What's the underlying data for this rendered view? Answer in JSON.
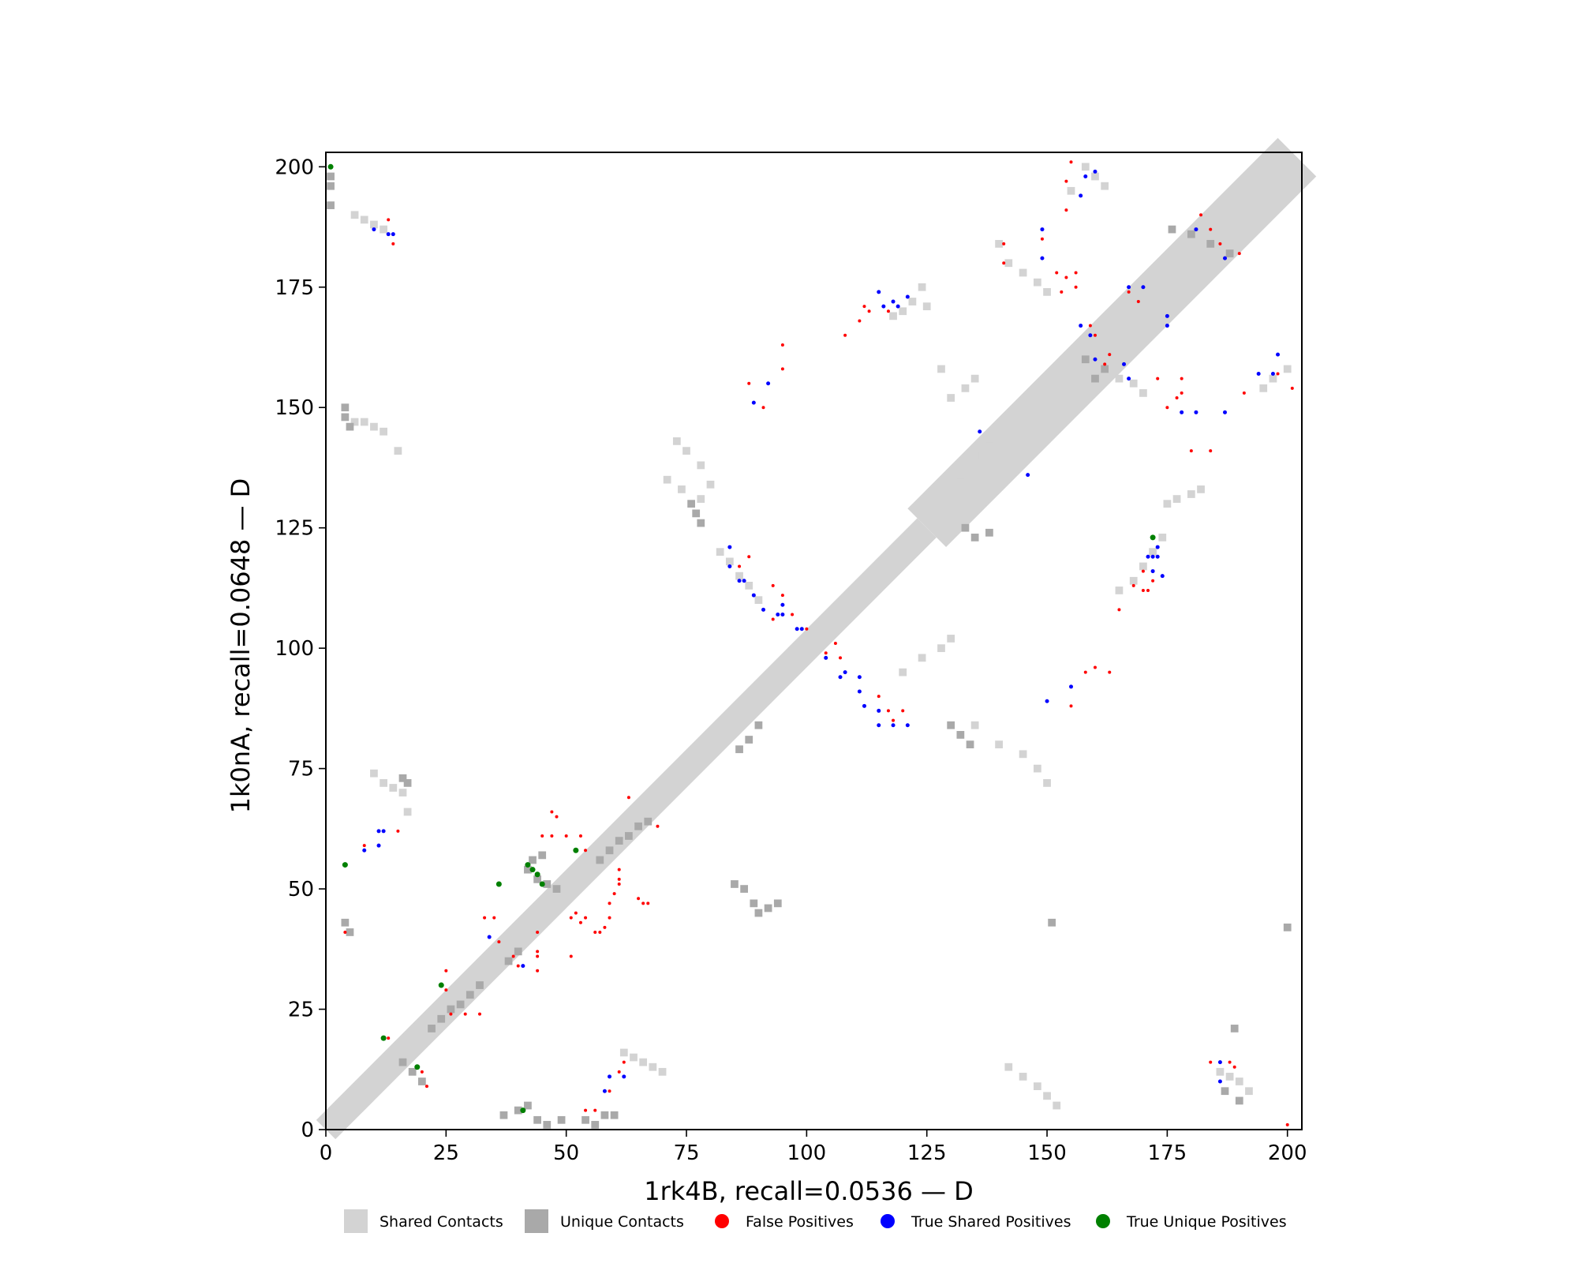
{
  "chart_data": {
    "type": "scatter",
    "subtype": "protein contact map overlay",
    "xlabel": "1rk4B, recall=0.0536 — D",
    "ylabel": "1k0nA, recall=0.0648 — D",
    "xlim": [
      0,
      203
    ],
    "ylim": [
      0,
      203
    ],
    "xticks": [
      0,
      25,
      50,
      75,
      100,
      125,
      150,
      175,
      200
    ],
    "yticks": [
      0,
      25,
      50,
      75,
      100,
      125,
      150,
      175,
      200
    ],
    "grid": false,
    "legend_position": "bottom-center",
    "colors": {
      "shared": "#d3d3d3",
      "unique": "#a9a9a9",
      "false_positive": "#ff0000",
      "true_shared": "#0000ff",
      "true_unique": "#008000"
    },
    "legend": [
      {
        "label": "Shared Contacts",
        "marker": "square",
        "color": "#d3d3d3"
      },
      {
        "label": "Unique Contacts",
        "marker": "square",
        "color": "#a9a9a9"
      },
      {
        "label": "False Positives",
        "marker": "circle",
        "color": "#ff0000"
      },
      {
        "label": "True Shared Positives",
        "marker": "circle",
        "color": "#0000ff"
      },
      {
        "label": "True Unique Positives",
        "marker": "circle",
        "color": "#008000"
      }
    ],
    "diagonal_band": {
      "description": "shared contacts near the main diagonal",
      "segments": [
        [
          0,
          0,
          125,
          2
        ],
        [
          125,
          125,
          202,
          4
        ]
      ]
    },
    "shared_contacts": [
      [
        6,
        190
      ],
      [
        8,
        189
      ],
      [
        10,
        188
      ],
      [
        12,
        187
      ],
      [
        6,
        147
      ],
      [
        8,
        147
      ],
      [
        10,
        146
      ],
      [
        12,
        145
      ],
      [
        15,
        141
      ],
      [
        10,
        74
      ],
      [
        12,
        72
      ],
      [
        14,
        71
      ],
      [
        16,
        70
      ],
      [
        17,
        66
      ],
      [
        73,
        143
      ],
      [
        75,
        141
      ],
      [
        78,
        138
      ],
      [
        80,
        134
      ],
      [
        71,
        135
      ],
      [
        74,
        133
      ],
      [
        78,
        131
      ],
      [
        82,
        120
      ],
      [
        84,
        118
      ],
      [
        86,
        115
      ],
      [
        88,
        113
      ],
      [
        90,
        110
      ],
      [
        120,
        170
      ],
      [
        122,
        172
      ],
      [
        124,
        175
      ],
      [
        118,
        169
      ],
      [
        125,
        171
      ],
      [
        130,
        152
      ],
      [
        133,
        154
      ],
      [
        135,
        156
      ],
      [
        128,
        158
      ],
      [
        135,
        84
      ],
      [
        140,
        80
      ],
      [
        145,
        78
      ],
      [
        148,
        75
      ],
      [
        150,
        72
      ],
      [
        140,
        184
      ],
      [
        142,
        180
      ],
      [
        145,
        178
      ],
      [
        148,
        176
      ],
      [
        150,
        174
      ],
      [
        158,
        200
      ],
      [
        160,
        198
      ],
      [
        162,
        196
      ],
      [
        155,
        195
      ],
      [
        165,
        112
      ],
      [
        168,
        114
      ],
      [
        170,
        117
      ],
      [
        172,
        120
      ],
      [
        174,
        123
      ],
      [
        160,
        160
      ],
      [
        162,
        158
      ],
      [
        165,
        156
      ],
      [
        168,
        155
      ],
      [
        170,
        153
      ],
      [
        175,
        130
      ],
      [
        177,
        131
      ],
      [
        180,
        132
      ],
      [
        182,
        133
      ],
      [
        195,
        154
      ],
      [
        197,
        156
      ],
      [
        200,
        158
      ],
      [
        142,
        13
      ],
      [
        145,
        11
      ],
      [
        148,
        9
      ],
      [
        150,
        7
      ],
      [
        152,
        5
      ],
      [
        186,
        12
      ],
      [
        188,
        11
      ],
      [
        190,
        10
      ],
      [
        192,
        8
      ],
      [
        62,
        16
      ],
      [
        64,
        15
      ],
      [
        66,
        14
      ],
      [
        68,
        13
      ],
      [
        70,
        12
      ],
      [
        120,
        95
      ],
      [
        124,
        98
      ],
      [
        128,
        100
      ],
      [
        130,
        102
      ],
      [
        135,
        140
      ],
      [
        138,
        142
      ],
      [
        140,
        138
      ],
      [
        132,
        136
      ]
    ],
    "unique_contacts": [
      [
        1,
        196
      ],
      [
        1,
        192
      ],
      [
        1,
        198
      ],
      [
        4,
        148
      ],
      [
        5,
        146
      ],
      [
        4,
        150
      ],
      [
        4,
        43
      ],
      [
        5,
        41
      ],
      [
        16,
        73
      ],
      [
        17,
        72
      ],
      [
        37,
        3
      ],
      [
        40,
        4
      ],
      [
        42,
        5
      ],
      [
        44,
        2
      ],
      [
        46,
        1
      ],
      [
        49,
        2
      ],
      [
        54,
        2
      ],
      [
        56,
        1
      ],
      [
        58,
        3
      ],
      [
        60,
        3
      ],
      [
        42,
        54
      ],
      [
        44,
        52
      ],
      [
        46,
        51
      ],
      [
        48,
        50
      ],
      [
        43,
        56
      ],
      [
        45,
        57
      ],
      [
        22,
        21
      ],
      [
        24,
        23
      ],
      [
        26,
        25
      ],
      [
        28,
        26
      ],
      [
        30,
        28
      ],
      [
        32,
        30
      ],
      [
        38,
        35
      ],
      [
        40,
        37
      ],
      [
        57,
        56
      ],
      [
        59,
        58
      ],
      [
        61,
        60
      ],
      [
        63,
        61
      ],
      [
        65,
        63
      ],
      [
        67,
        64
      ],
      [
        77,
        128
      ],
      [
        78,
        126
      ],
      [
        76,
        130
      ],
      [
        85,
        51
      ],
      [
        87,
        50
      ],
      [
        89,
        47
      ],
      [
        90,
        45
      ],
      [
        92,
        46
      ],
      [
        94,
        47
      ],
      [
        86,
        79
      ],
      [
        88,
        81
      ],
      [
        90,
        84
      ],
      [
        130,
        84
      ],
      [
        132,
        82
      ],
      [
        134,
        80
      ],
      [
        133,
        125
      ],
      [
        135,
        123
      ],
      [
        138,
        124
      ],
      [
        151,
        43
      ],
      [
        200,
        42
      ],
      [
        189,
        21
      ],
      [
        187,
        8
      ],
      [
        190,
        6
      ],
      [
        16,
        14
      ],
      [
        18,
        12
      ],
      [
        20,
        10
      ],
      [
        176,
        187
      ],
      [
        180,
        186
      ],
      [
        184,
        184
      ],
      [
        188,
        182
      ],
      [
        160,
        156
      ],
      [
        162,
        158
      ],
      [
        158,
        160
      ]
    ],
    "false_positives": [
      [
        13,
        189
      ],
      [
        14,
        184
      ],
      [
        4,
        41
      ],
      [
        8,
        59
      ],
      [
        15,
        62
      ],
      [
        13,
        19
      ],
      [
        20,
        12
      ],
      [
        21,
        9
      ],
      [
        25,
        33
      ],
      [
        25,
        29
      ],
      [
        26,
        24
      ],
      [
        29,
        24
      ],
      [
        32,
        24
      ],
      [
        33,
        44
      ],
      [
        35,
        44
      ],
      [
        36,
        39
      ],
      [
        39,
        36
      ],
      [
        40,
        34
      ],
      [
        44,
        41
      ],
      [
        44,
        37
      ],
      [
        44,
        36
      ],
      [
        44,
        33
      ],
      [
        45,
        61
      ],
      [
        47,
        66
      ],
      [
        48,
        65
      ],
      [
        47,
        61
      ],
      [
        50,
        61
      ],
      [
        53,
        61
      ],
      [
        54,
        58
      ],
      [
        51,
        36
      ],
      [
        51,
        44
      ],
      [
        52,
        45
      ],
      [
        53,
        43
      ],
      [
        54,
        44
      ],
      [
        56,
        41
      ],
      [
        57,
        41
      ],
      [
        58,
        42
      ],
      [
        59,
        44
      ],
      [
        59,
        47
      ],
      [
        60,
        49
      ],
      [
        61,
        51
      ],
      [
        61,
        52
      ],
      [
        61,
        54
      ],
      [
        63,
        69
      ],
      [
        65,
        48
      ],
      [
        66,
        47
      ],
      [
        67,
        47
      ],
      [
        69,
        63
      ],
      [
        54,
        4
      ],
      [
        56,
        4
      ],
      [
        59,
        8
      ],
      [
        61,
        12
      ],
      [
        62,
        14
      ],
      [
        88,
        155
      ],
      [
        95,
        158
      ],
      [
        95,
        163
      ],
      [
        91,
        150
      ],
      [
        86,
        117
      ],
      [
        88,
        119
      ],
      [
        93,
        113
      ],
      [
        95,
        111
      ],
      [
        93,
        106
      ],
      [
        97,
        107
      ],
      [
        100,
        104
      ],
      [
        104,
        99
      ],
      [
        106,
        101
      ],
      [
        107,
        98
      ],
      [
        108,
        165
      ],
      [
        111,
        168
      ],
      [
        112,
        171
      ],
      [
        113,
        170
      ],
      [
        117,
        170
      ],
      [
        115,
        90
      ],
      [
        117,
        87
      ],
      [
        118,
        85
      ],
      [
        120,
        87
      ],
      [
        141,
        184
      ],
      [
        141,
        180
      ],
      [
        149,
        185
      ],
      [
        152,
        178
      ],
      [
        153,
        174
      ],
      [
        154,
        177
      ],
      [
        156,
        178
      ],
      [
        156,
        175
      ],
      [
        155,
        88
      ],
      [
        158,
        95
      ],
      [
        160,
        96
      ],
      [
        163,
        95
      ],
      [
        154,
        191
      ],
      [
        154,
        197
      ],
      [
        155,
        201
      ],
      [
        159,
        167
      ],
      [
        160,
        165
      ],
      [
        162,
        159
      ],
      [
        163,
        161
      ],
      [
        165,
        108
      ],
      [
        168,
        113
      ],
      [
        170,
        112
      ],
      [
        171,
        112
      ],
      [
        170,
        116
      ],
      [
        172,
        114
      ],
      [
        167,
        174
      ],
      [
        169,
        172
      ],
      [
        173,
        156
      ],
      [
        175,
        150
      ],
      [
        177,
        152
      ],
      [
        178,
        156
      ],
      [
        178,
        153
      ],
      [
        180,
        141
      ],
      [
        184,
        141
      ],
      [
        182,
        190
      ],
      [
        184,
        187
      ],
      [
        186,
        184
      ],
      [
        190,
        182
      ],
      [
        191,
        153
      ],
      [
        198,
        157
      ],
      [
        201,
        154
      ],
      [
        200,
        1
      ],
      [
        184,
        14
      ],
      [
        188,
        14
      ],
      [
        189,
        13
      ]
    ],
    "true_shared_positives": [
      [
        10,
        187
      ],
      [
        13,
        186
      ],
      [
        14,
        186
      ],
      [
        8,
        58
      ],
      [
        11,
        59
      ],
      [
        11,
        62
      ],
      [
        12,
        62
      ],
      [
        34,
        40
      ],
      [
        41,
        34
      ],
      [
        58,
        8
      ],
      [
        59,
        11
      ],
      [
        62,
        11
      ],
      [
        84,
        121
      ],
      [
        84,
        117
      ],
      [
        86,
        114
      ],
      [
        87,
        114
      ],
      [
        89,
        111
      ],
      [
        91,
        108
      ],
      [
        94,
        107
      ],
      [
        95,
        109
      ],
      [
        95,
        107
      ],
      [
        98,
        104
      ],
      [
        99,
        104
      ],
      [
        89,
        151
      ],
      [
        92,
        155
      ],
      [
        104,
        98
      ],
      [
        107,
        94
      ],
      [
        108,
        95
      ],
      [
        111,
        94
      ],
      [
        111,
        91
      ],
      [
        112,
        88
      ],
      [
        115,
        87
      ],
      [
        115,
        84
      ],
      [
        118,
        84
      ],
      [
        121,
        84
      ],
      [
        115,
        174
      ],
      [
        116,
        171
      ],
      [
        118,
        172
      ],
      [
        119,
        171
      ],
      [
        121,
        173
      ],
      [
        136,
        145
      ],
      [
        146,
        136
      ],
      [
        149,
        181
      ],
      [
        149,
        187
      ],
      [
        157,
        194
      ],
      [
        158,
        198
      ],
      [
        160,
        199
      ],
      [
        150,
        89
      ],
      [
        155,
        92
      ],
      [
        157,
        167
      ],
      [
        159,
        165
      ],
      [
        160,
        160
      ],
      [
        166,
        159
      ],
      [
        167,
        156
      ],
      [
        167,
        175
      ],
      [
        170,
        175
      ],
      [
        175,
        169
      ],
      [
        175,
        167
      ],
      [
        171,
        119
      ],
      [
        172,
        119
      ],
      [
        173,
        119
      ],
      [
        172,
        116
      ],
      [
        173,
        121
      ],
      [
        174,
        115
      ],
      [
        178,
        149
      ],
      [
        181,
        149
      ],
      [
        187,
        149
      ],
      [
        181,
        187
      ],
      [
        187,
        181
      ],
      [
        194,
        157
      ],
      [
        197,
        157
      ],
      [
        198,
        161
      ],
      [
        186,
        14
      ],
      [
        186,
        10
      ]
    ],
    "true_unique_positives": [
      [
        1,
        200
      ],
      [
        4,
        55
      ],
      [
        12,
        19
      ],
      [
        19,
        13
      ],
      [
        24,
        30
      ],
      [
        36,
        51
      ],
      [
        41,
        4
      ],
      [
        42,
        55
      ],
      [
        43,
        54
      ],
      [
        44,
        53
      ],
      [
        45,
        51
      ],
      [
        52,
        58
      ],
      [
        172,
        123
      ]
    ]
  }
}
